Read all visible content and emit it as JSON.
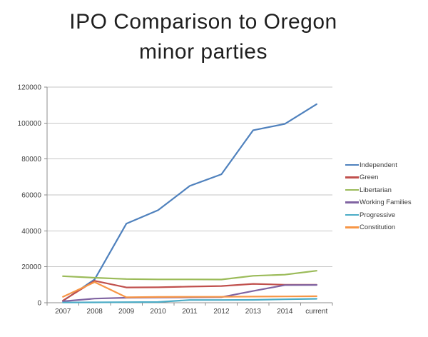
{
  "slide": {
    "title_line1": "IPO Comparison to Oregon",
    "title_line2": "minor parties"
  },
  "chart_data": {
    "type": "line",
    "title": "IPO Comparison to Oregon minor parties",
    "xlabel": "",
    "ylabel": "",
    "categories": [
      "2007",
      "2008",
      "2009",
      "2010",
      "2011",
      "2012",
      "2013",
      "2014",
      "current"
    ],
    "series": [
      {
        "name": "Independent",
        "color": "#4F81BD",
        "values": [
          1000,
          13000,
          44000,
          51500,
          65000,
          71500,
          96000,
          99500,
          110500
        ]
      },
      {
        "name": "Green",
        "color": "#C0504D",
        "values": [
          1200,
          12200,
          8500,
          8600,
          9000,
          9300,
          10500,
          10000,
          10000
        ]
      },
      {
        "name": "Libertarian",
        "color": "#9BBB59",
        "values": [
          14800,
          13900,
          13200,
          13000,
          13000,
          12900,
          15000,
          15600,
          17800
        ]
      },
      {
        "name": "Working Families",
        "color": "#8064A2",
        "values": [
          800,
          2300,
          2800,
          2900,
          3000,
          3100,
          6500,
          9800,
          9900
        ]
      },
      {
        "name": "Progressive",
        "color": "#4BACC6",
        "values": [
          100,
          200,
          300,
          400,
          1500,
          1500,
          1600,
          1900,
          2200
        ]
      },
      {
        "name": "Constitution",
        "color": "#F79646",
        "values": [
          3300,
          11500,
          3000,
          3200,
          3300,
          3300,
          3400,
          3500,
          3600
        ]
      }
    ],
    "ylim": [
      0,
      120000
    ],
    "ytick_step": 20000,
    "ytick_labels": [
      "0",
      "20000",
      "40000",
      "60000",
      "80000",
      "100000",
      "120000"
    ],
    "grid": true,
    "legend_position": "right",
    "axis_color": "#8C8C8C",
    "grid_color": "#C6C6C6",
    "tick_label_color": "#3f3f3f",
    "line_width": 2.2
  }
}
